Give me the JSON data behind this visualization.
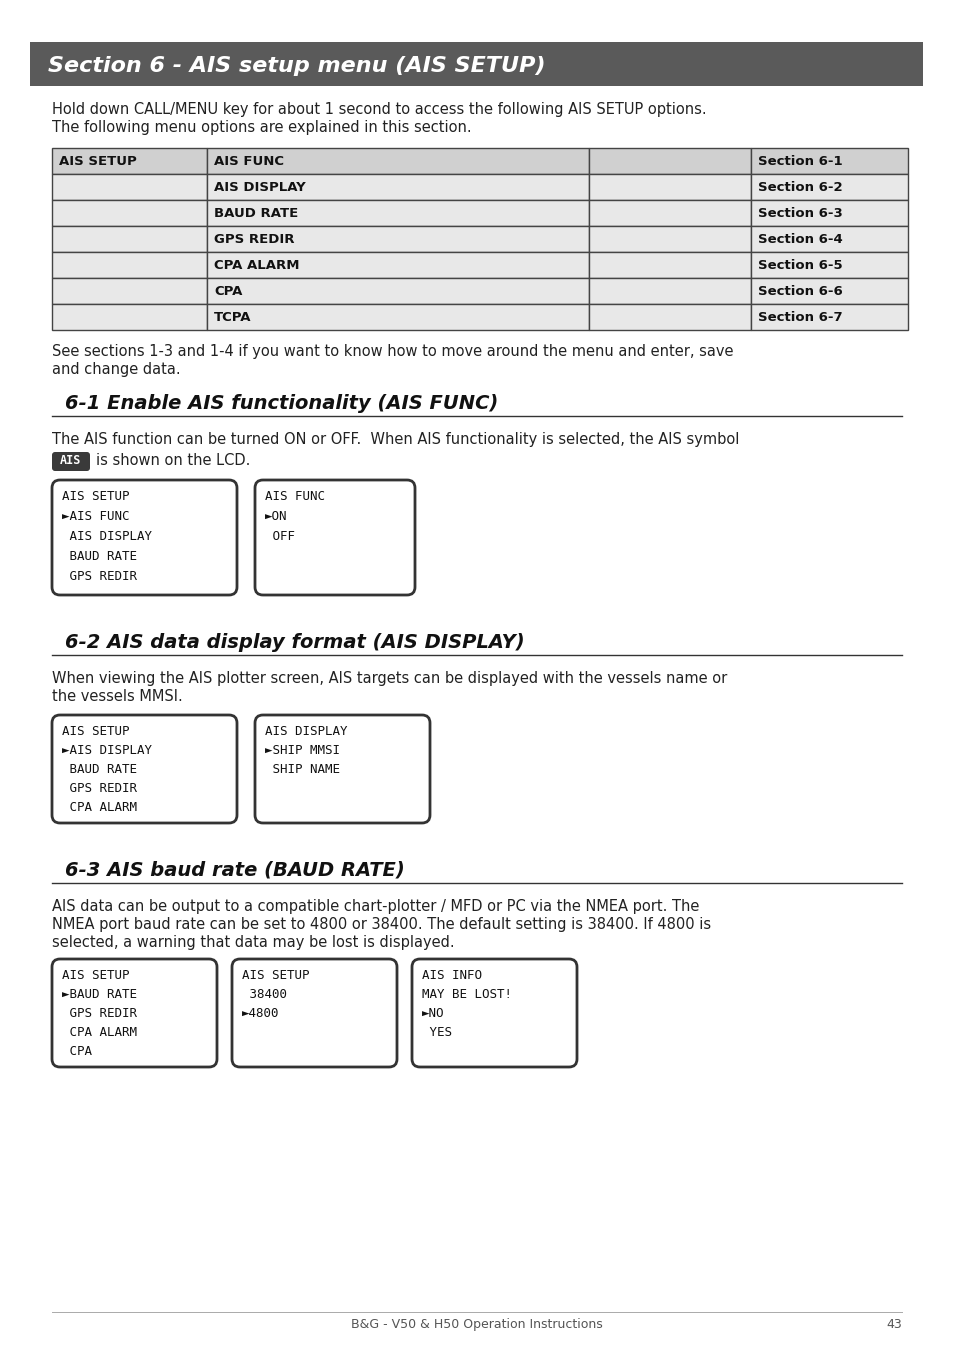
{
  "page_bg": "#ffffff",
  "header_bg": "#5a5a5a",
  "header_text": "Section 6 - AIS setup menu (AIS SETUP)",
  "header_text_color": "#ffffff",
  "header_fontsize": 16,
  "intro_text1": "Hold down CALL/MENU key for about 1 second to access the following AIS SETUP options.",
  "intro_text2": "The following menu options are explained in this section.",
  "intro_fontsize": 10.5,
  "table_col1_header": "AIS SETUP",
  "table_rows": [
    [
      "AIS FUNC",
      "Section 6-1"
    ],
    [
      "AIS DISPLAY",
      "Section 6-2"
    ],
    [
      "BAUD RATE",
      "Section 6-3"
    ],
    [
      "GPS REDIR",
      "Section 6-4"
    ],
    [
      "CPA ALARM",
      "Section 6-5"
    ],
    [
      "CPA",
      "Section 6-6"
    ],
    [
      "TCPA",
      "Section 6-7"
    ]
  ],
  "table_header_bg": "#d0d0d0",
  "table_row_bg": "#e8e8e8",
  "table_border_color": "#444444",
  "table_fontsize": 9.5,
  "section61_title": "6-1 Enable AIS functionality (AIS FUNC)",
  "section61_body1": "The AIS function can be turned ON or OFF.  When AIS functionality is selected, the AIS symbol",
  "section61_body2": "is shown on the LCD.",
  "section61_body_fontsize": 10.5,
  "section61_title_fontsize": 14,
  "lcd_box1_lines": [
    "AIS SETUP",
    "►AIS FUNC",
    " AIS DISPLAY",
    " BAUD RATE",
    " GPS REDIR"
  ],
  "lcd_box2_lines": [
    "AIS FUNC",
    "►ON",
    " OFF"
  ],
  "section62_title": "6-2 AIS data display format (AIS DISPLAY)",
  "section62_body1": "When viewing the AIS plotter screen, AIS targets can be displayed with the vessels name or",
  "section62_body2": "the vessels MMSI.",
  "section62_title_fontsize": 14,
  "section62_body_fontsize": 10.5,
  "lcd_box3_lines": [
    "AIS SETUP",
    "►AIS DISPLAY",
    " BAUD RATE",
    " GPS REDIR",
    " CPA ALARM"
  ],
  "lcd_box4_lines": [
    "AIS DISPLAY",
    "►SHIP MMSI",
    " SHIP NAME"
  ],
  "section63_title": "6-3 AIS baud rate (BAUD RATE)",
  "section63_title_fontsize": 14,
  "section63_body1": "AIS data can be output to a compatible chart-plotter / MFD or PC via the NMEA port. The",
  "section63_body2": "NMEA port baud rate can be set to 4800 or 38400. The default setting is 38400. If 4800 is",
  "section63_body3": "selected, a warning that data may be lost is displayed.",
  "section63_body_fontsize": 10.5,
  "lcd_box5_lines": [
    "AIS SETUP",
    "►BAUD RATE",
    " GPS REDIR",
    " CPA ALARM",
    " CPA"
  ],
  "lcd_box6_lines": [
    "AIS SETUP",
    " 38400",
    "►4800"
  ],
  "lcd_box7_lines": [
    "AIS INFO",
    "MAY BE LOST!",
    "►NO",
    " YES"
  ],
  "footer_text": "B&G - V50 & H50 Operation Instructions",
  "footer_page": "43",
  "footer_fontsize": 9,
  "mono_fontsize": 9,
  "section_title_color": "#111111",
  "body_text_color": "#222222",
  "lcd_border_color": "#333333",
  "lcd_bg": "#ffffff",
  "divider_color": "#333333",
  "after_table_text1": "See sections 1-3 and 1-4 if you want to know how to move around the menu and enter, save",
  "after_table_text2": "and change data."
}
